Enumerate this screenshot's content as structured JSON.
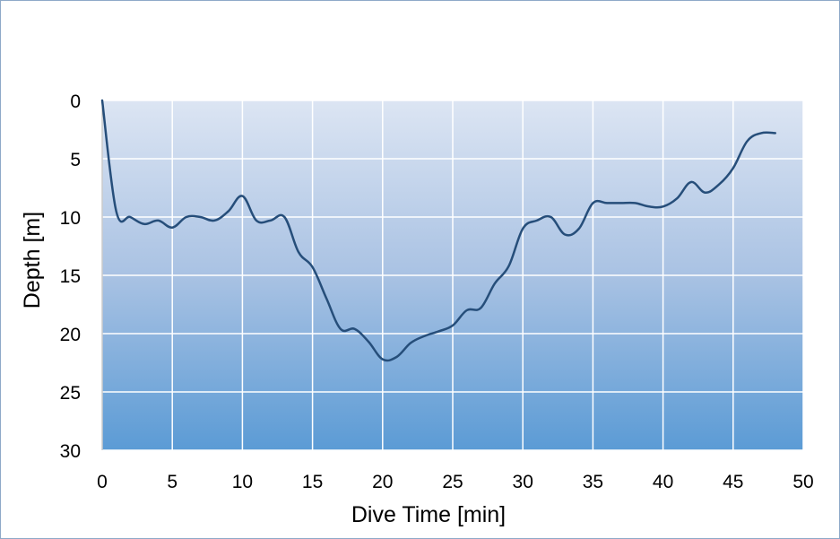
{
  "chart_data": {
    "type": "line",
    "title": "",
    "xlabel": "Dive Time [min]",
    "ylabel": "Depth [m]",
    "xlim": [
      0,
      50
    ],
    "ylim": [
      0,
      30
    ],
    "y_inverted": true,
    "grid": true,
    "legend": null,
    "x_ticks": [
      0,
      5,
      10,
      15,
      20,
      25,
      30,
      35,
      40,
      45,
      50
    ],
    "y_ticks": [
      0,
      5,
      10,
      15,
      20,
      25,
      30
    ],
    "series": [
      {
        "name": "Depth",
        "color": "#264e7a",
        "x": [
          0,
          1,
          2,
          3,
          4,
          5,
          6,
          7,
          8,
          9,
          10,
          11,
          12,
          13,
          14,
          15,
          16,
          17,
          18,
          19,
          20,
          21,
          22,
          23,
          24,
          25,
          26,
          27,
          28,
          29,
          30,
          31,
          32,
          33,
          34,
          35,
          36,
          37,
          38,
          39,
          40,
          41,
          42,
          43,
          44,
          45,
          46,
          47,
          48
        ],
        "values": [
          0,
          9.5,
          10,
          10.6,
          10.3,
          10.9,
          10,
          10,
          10.3,
          9.5,
          8.2,
          10.3,
          10.3,
          10,
          13,
          14.3,
          17,
          19.6,
          19.6,
          20.7,
          22.2,
          22,
          20.8,
          20.2,
          19.8,
          19.3,
          18,
          17.8,
          15.7,
          14.2,
          11,
          10.3,
          10,
          11.5,
          11,
          8.8,
          8.8,
          8.8,
          8.8,
          9.1,
          9.1,
          8.4,
          7,
          7.9,
          7.2,
          5.8,
          3.5,
          2.8,
          2.8
        ]
      }
    ],
    "colors": {
      "plot_bg_top": "#dce5f3",
      "plot_bg_bottom": "#5b9bd5",
      "gridline": "#ffffff",
      "line": "#264e7a",
      "border": "#8ea9c8"
    }
  },
  "labels": {
    "xlabel": "Dive Time [min]",
    "ylabel": "Depth [m]"
  }
}
